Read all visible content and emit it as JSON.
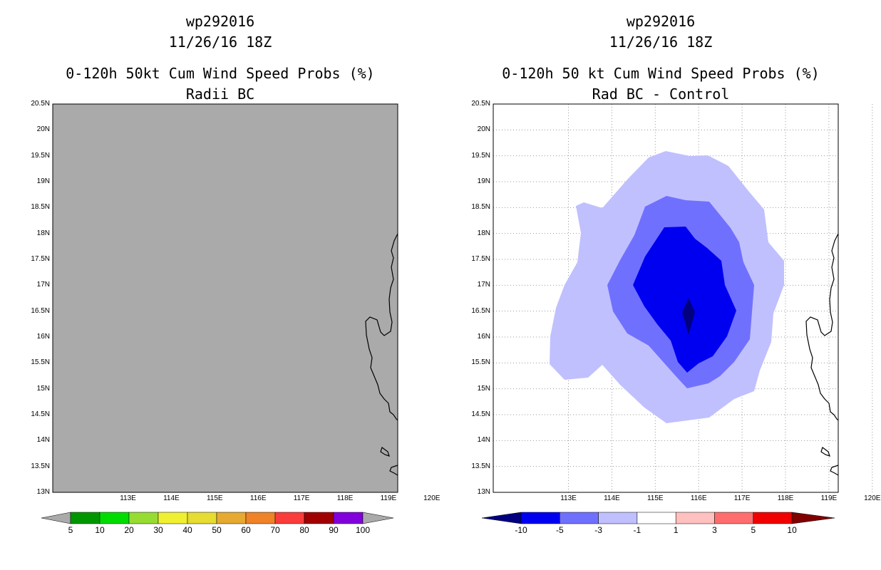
{
  "left": {
    "title": [
      "wp292016",
      "11/26/16 18Z",
      "0-120h 50kt Cum Wind Speed Probs (%)",
      "Radii BC"
    ],
    "fill_color": "#aaaaaa",
    "colorbar": {
      "colors": [
        "#009600",
        "#00dc00",
        "#96dc32",
        "#f0f032",
        "#e6dc32",
        "#e6aa32",
        "#f08228",
        "#fa3c3c",
        "#a00000",
        "#8200dc"
      ],
      "labels": [
        "5",
        "10",
        "20",
        "30",
        "40",
        "50",
        "60",
        "70",
        "80",
        "90",
        "100"
      ],
      "end_color": "#aaaaaa"
    }
  },
  "right": {
    "title": [
      "wp292016",
      "11/26/16 18Z",
      "0-120h 50 kt Cum Wind Speed Probs (%)",
      "Rad BC - Control"
    ],
    "colorbar": {
      "colors": [
        "#0000f0",
        "#7070ff",
        "#c0c0ff",
        "#ffffff",
        "#ffc0c0",
        "#ff6e6e",
        "#f00000"
      ],
      "labels": [
        "-10",
        "-5",
        "-3",
        "-1",
        "1",
        "3",
        "5",
        "10"
      ],
      "low_color": "#000080",
      "high_color": "#800000"
    },
    "contour_colors": {
      "light": "#c0c0ff",
      "medium": "#7070ff",
      "strong": "#0000f0",
      "darkest": "#000080"
    }
  },
  "axes": {
    "y_labels": [
      "20.5N",
      "20N",
      "19.5N",
      "19N",
      "18.5N",
      "18N",
      "17.5N",
      "17N",
      "16.5N",
      "16N",
      "15.5N",
      "15N",
      "14.5N",
      "14N",
      "13.5N",
      "13N"
    ],
    "x_labels": [
      "113E",
      "114E",
      "115E",
      "116E",
      "117E",
      "118E",
      "119E",
      "120E"
    ]
  }
}
